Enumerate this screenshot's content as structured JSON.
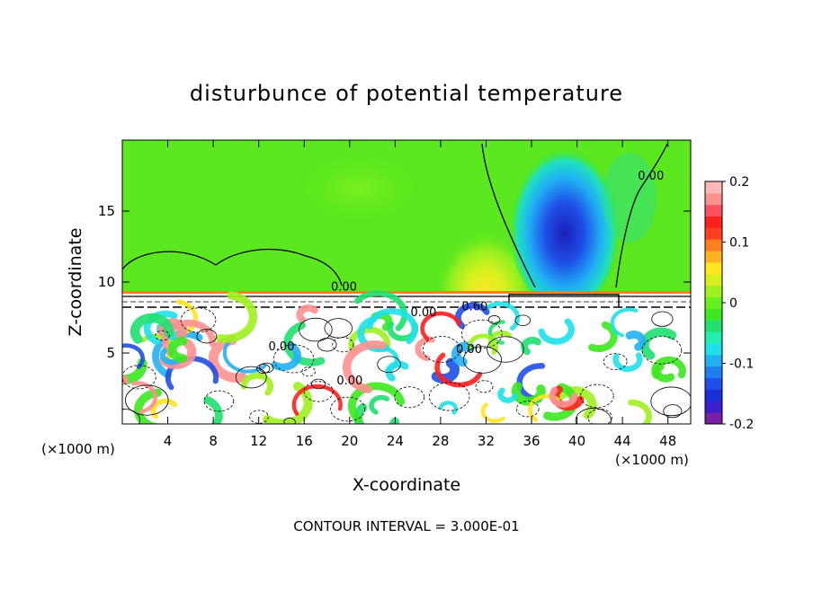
{
  "chart_data": {
    "type": "heatmap",
    "title": "disturbunce of potential temperature",
    "xlabel": "X-coordinate",
    "ylabel": "Z-coordinate",
    "x_unit_left": "(×1000 m)",
    "x_unit_right": "(×1000 m)",
    "footer": "CONTOUR INTERVAL = 3.000E-01",
    "xlim": [
      0,
      50
    ],
    "ylim": [
      0,
      20
    ],
    "x_ticks": [
      4,
      8,
      12,
      16,
      20,
      24,
      28,
      32,
      36,
      40,
      44,
      48
    ],
    "y_ticks": [
      5,
      10,
      15
    ],
    "colorbar": {
      "range": [
        -0.2,
        0.2
      ],
      "tick_labels": [
        {
          "value": 0.2,
          "label": "0.2"
        },
        {
          "value": 0.1,
          "label": "0.1"
        },
        {
          "value": 0,
          "label": "0"
        },
        {
          "value": -0.1,
          "label": "-0.1"
        },
        {
          "value": -0.2,
          "label": "-0.2"
        }
      ],
      "colors": [
        "#7a1fa8",
        "#3c1fd0",
        "#1a2fd8",
        "#1f4fe8",
        "#1f7ff0",
        "#22b0f4",
        "#1fe0e8",
        "#1ff0b0",
        "#1fe070",
        "#3ce81f",
        "#66f01f",
        "#a0f01f",
        "#d8f01f",
        "#ffe61f",
        "#ffb41f",
        "#ff7f1f",
        "#ff3f1f",
        "#ff1f1f",
        "#ff5060",
        "#ff9090",
        "#ffb8b8"
      ]
    },
    "contour_labels": [
      {
        "x": 19.5,
        "y": 9.4,
        "text": "0.00"
      },
      {
        "x": 26.5,
        "y": 7.6,
        "text": "0.00"
      },
      {
        "x": 31.0,
        "y": 8.0,
        "text": "0.60"
      },
      {
        "x": 46.5,
        "y": 17.2,
        "text": "0.00"
      },
      {
        "x": 14.0,
        "y": 5.2,
        "text": "0.00"
      },
      {
        "x": 30.5,
        "y": 5.0,
        "text": "0.00"
      },
      {
        "x": 20.0,
        "y": 2.8,
        "text": "0.00"
      }
    ]
  }
}
